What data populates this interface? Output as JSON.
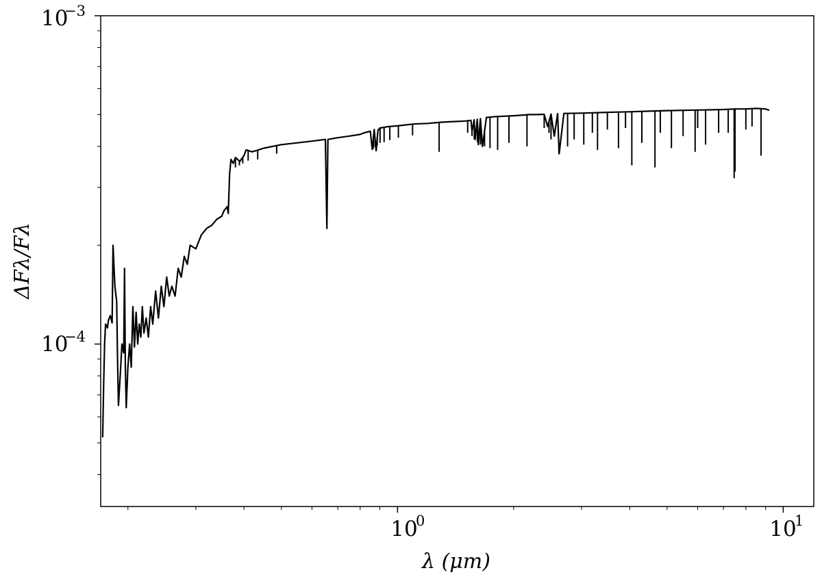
{
  "chart_data": {
    "type": "line",
    "title": "",
    "xlabel": "λ (μm)",
    "ylabel": "ΔFλ/Fλ",
    "xscale": "log",
    "yscale": "log",
    "xlim": [
      0.17,
      12
    ],
    "ylim": [
      3.2e-05,
      0.001
    ],
    "grid": false,
    "legend": "none",
    "x_tick_labels": [
      {
        "value": 1,
        "base": "10",
        "exp": "0"
      },
      {
        "value": 10,
        "base": "10",
        "exp": "1"
      }
    ],
    "y_tick_labels": [
      {
        "value": 0.0001,
        "base": "10",
        "exp": "−4"
      },
      {
        "value": 0.001,
        "base": "10",
        "exp": "−3"
      }
    ],
    "line_color": "#000000",
    "series": [
      {
        "values": [
          [
            0.172,
            5.2e-05
          ],
          [
            0.173,
            7.5e-05
          ],
          [
            0.174,
            0.0001
          ],
          [
            0.175,
            0.000115
          ],
          [
            0.177,
            0.000112
          ],
          [
            0.178,
            0.000118
          ],
          [
            0.18,
            0.000122
          ],
          [
            0.182,
            0.000116
          ],
          [
            0.183,
            0.0002
          ],
          [
            0.185,
            0.00015
          ],
          [
            0.187,
            0.000135
          ],
          [
            0.188,
            9e-05
          ],
          [
            0.189,
            6.5e-05
          ],
          [
            0.191,
            8e-05
          ],
          [
            0.193,
            0.0001
          ],
          [
            0.195,
            9.4e-05
          ],
          [
            0.196,
            0.00017
          ],
          [
            0.197,
            8.5e-05
          ],
          [
            0.198,
            6.4e-05
          ],
          [
            0.2,
            8.5e-05
          ],
          [
            0.202,
            0.0001
          ],
          [
            0.204,
            8.5e-05
          ],
          [
            0.206,
            0.00013
          ],
          [
            0.208,
            9.8e-05
          ],
          [
            0.21,
            0.000125
          ],
          [
            0.212,
            0.0001
          ],
          [
            0.214,
            0.000115
          ],
          [
            0.216,
            0.000105
          ],
          [
            0.218,
            0.00013
          ],
          [
            0.22,
            0.000108
          ],
          [
            0.223,
            0.00012
          ],
          [
            0.226,
            0.000105
          ],
          [
            0.229,
            0.00013
          ],
          [
            0.232,
            0.000115
          ],
          [
            0.236,
            0.000145
          ],
          [
            0.24,
            0.00012
          ],
          [
            0.244,
            0.00015
          ],
          [
            0.248,
            0.00013
          ],
          [
            0.252,
            0.00016
          ],
          [
            0.256,
            0.00014
          ],
          [
            0.26,
            0.00015
          ],
          [
            0.265,
            0.00014
          ],
          [
            0.27,
            0.00017
          ],
          [
            0.275,
            0.00016
          ],
          [
            0.28,
            0.000185
          ],
          [
            0.285,
            0.000175
          ],
          [
            0.29,
            0.0002
          ],
          [
            0.3,
            0.000195
          ],
          [
            0.31,
            0.000215
          ],
          [
            0.32,
            0.000225
          ],
          [
            0.33,
            0.00023
          ],
          [
            0.34,
            0.00024
          ],
          [
            0.35,
            0.000245
          ],
          [
            0.355,
            0.000255
          ],
          [
            0.36,
            0.00026
          ],
          [
            0.362,
            0.000262
          ],
          [
            0.364,
            0.00025
          ],
          [
            0.367,
            0.00033
          ],
          [
            0.37,
            0.000365
          ],
          [
            0.375,
            0.000355
          ],
          [
            0.38,
            0.00037
          ],
          [
            0.39,
            0.00036
          ],
          [
            0.4,
            0.000375
          ],
          [
            0.405,
            0.00039
          ],
          [
            0.42,
            0.000385
          ],
          [
            0.45,
            0.000395
          ],
          [
            0.5,
            0.000405
          ],
          [
            0.55,
            0.00041
          ],
          [
            0.6,
            0.000415
          ],
          [
            0.65,
            0.00042
          ],
          [
            0.656,
            0.000225
          ],
          [
            0.66,
            0.00042
          ],
          [
            0.7,
            0.000425
          ],
          [
            0.75,
            0.00043
          ],
          [
            0.8,
            0.000435
          ],
          [
            0.82,
            0.00044
          ],
          [
            0.85,
            0.000445
          ],
          [
            0.86,
            0.000392
          ],
          [
            0.87,
            0.00045
          ],
          [
            0.88,
            0.000388
          ],
          [
            0.89,
            0.000448
          ],
          [
            0.9,
            0.000455
          ],
          [
            0.95,
            0.00046
          ],
          [
            1.0,
            0.000462
          ],
          [
            1.1,
            0.000468
          ],
          [
            1.2,
            0.00047
          ],
          [
            1.3,
            0.000474
          ],
          [
            1.4,
            0.000476
          ],
          [
            1.5,
            0.000478
          ],
          [
            1.55,
            0.00048
          ],
          [
            1.56,
            0.000445
          ],
          [
            1.58,
            0.000482
          ],
          [
            1.59,
            0.00042
          ],
          [
            1.61,
            0.000484
          ],
          [
            1.62,
            0.000405
          ],
          [
            1.64,
            0.000486
          ],
          [
            1.66,
            0.0004
          ],
          [
            1.7,
            0.00049
          ],
          [
            1.8,
            0.000493
          ],
          [
            2.0,
            0.000496
          ],
          [
            2.2,
            0.0005
          ],
          [
            2.3,
            0.0005
          ],
          [
            2.4,
            0.000501
          ],
          [
            2.45,
            0.00046
          ],
          [
            2.5,
            0.000502
          ],
          [
            2.55,
            0.00043
          ],
          [
            2.6,
            0.000503
          ],
          [
            2.625,
            0.00038
          ],
          [
            2.7,
            0.000504
          ],
          [
            3.0,
            0.000505
          ],
          [
            3.5,
            0.000508
          ],
          [
            4.0,
            0.00051
          ],
          [
            4.5,
            0.000512
          ],
          [
            5.0,
            0.000514
          ],
          [
            6.0,
            0.000516
          ],
          [
            7.0,
            0.000518
          ],
          [
            7.5,
            0.00052
          ],
          [
            8.0,
            0.00052
          ],
          [
            8.5,
            0.000522
          ],
          [
            9.0,
            0.00052
          ],
          [
            9.2,
            0.000515
          ]
        ],
        "absorption_lines": [
          [
            0.38,
            0.000345
          ],
          [
            0.389,
            0.00035
          ],
          [
            0.397,
            0.000355
          ],
          [
            0.41,
            0.000362
          ],
          [
            0.434,
            0.000365
          ],
          [
            0.486,
            0.00038
          ],
          [
            0.656,
            0.000225
          ],
          [
            0.863,
            0.000392
          ],
          [
            0.866,
            0.000395
          ],
          [
            0.875,
            0.0004
          ],
          [
            0.886,
            0.000403
          ],
          [
            0.901,
            0.00041
          ],
          [
            0.923,
            0.000412
          ],
          [
            0.955,
            0.000418
          ],
          [
            1.005,
            0.000425
          ],
          [
            1.094,
            0.000432
          ],
          [
            1.282,
            0.000385
          ],
          [
            1.52,
            0.00044
          ],
          [
            1.56,
            0.00043
          ],
          [
            1.581,
            0.00042
          ],
          [
            1.611,
            0.000412
          ],
          [
            1.641,
            0.000405
          ],
          [
            1.681,
            0.0004
          ],
          [
            1.737,
            0.000395
          ],
          [
            1.818,
            0.00039
          ],
          [
            1.945,
            0.00041
          ],
          [
            2.166,
            0.0004
          ],
          [
            2.4,
            0.000455
          ],
          [
            2.47,
            0.00044
          ],
          [
            2.5,
            0.00042
          ],
          [
            2.62,
            0.00038
          ],
          [
            2.76,
            0.0004
          ],
          [
            2.87,
            0.00042
          ],
          [
            3.04,
            0.000405
          ],
          [
            3.3,
            0.00039
          ],
          [
            3.74,
            0.000395
          ],
          [
            4.05,
            0.00035
          ],
          [
            4.65,
            0.000345
          ],
          [
            5.13,
            0.000395
          ],
          [
            5.91,
            0.000385
          ],
          [
            6.29,
            0.000405
          ],
          [
            7.46,
            0.00032
          ],
          [
            7.5,
            0.000335
          ],
          [
            8.76,
            0.000375
          ],
          [
            4.3,
            0.00041
          ],
          [
            5.5,
            0.00043
          ],
          [
            6.8,
            0.00044
          ],
          [
            8.0,
            0.00045
          ],
          [
            3.2,
            0.00044
          ],
          [
            3.5,
            0.00045
          ],
          [
            3.9,
            0.000455
          ],
          [
            4.8,
            0.00044
          ],
          [
            6.0,
            0.000455
          ],
          [
            7.2,
            0.00044
          ],
          [
            8.3,
            0.00046
          ]
        ]
      }
    ]
  }
}
